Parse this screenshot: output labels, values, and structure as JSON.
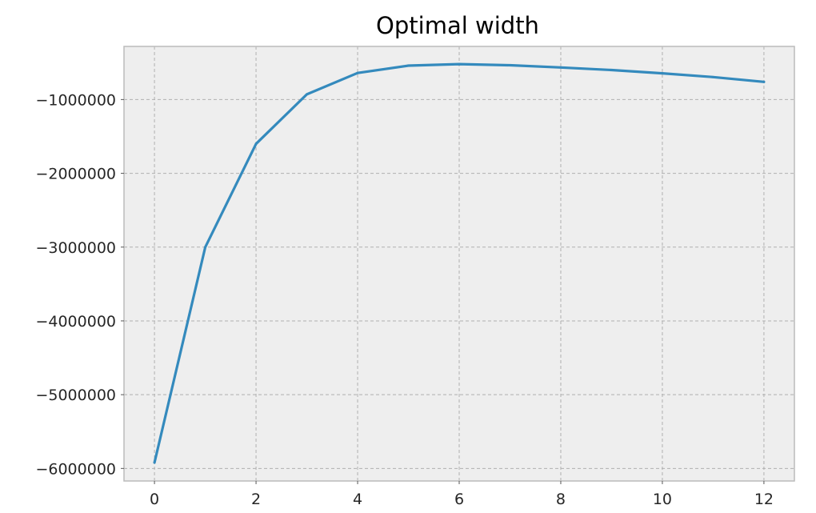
{
  "chart_data": {
    "type": "line",
    "title": "Optimal width",
    "xlabel": "",
    "ylabel": "",
    "x": [
      0,
      1,
      2,
      3,
      4,
      5,
      6,
      7,
      8,
      9,
      10,
      11,
      12
    ],
    "series": [
      {
        "name": "optimal width",
        "values": [
          -5920000,
          -3000000,
          -1600000,
          -930000,
          -640000,
          -540000,
          -520000,
          -535000,
          -565000,
          -600000,
          -645000,
          -695000,
          -760000
        ]
      }
    ],
    "xlim": [
      -0.6,
      12.6
    ],
    "ylim": [
      -6170000,
      -280000
    ],
    "xticks": [
      0,
      2,
      4,
      6,
      8,
      10,
      12
    ],
    "xtick_labels": [
      "0",
      "2",
      "4",
      "6",
      "8",
      "10",
      "12"
    ],
    "yticks": [
      -1000000,
      -2000000,
      -3000000,
      -4000000,
      -5000000,
      -6000000
    ],
    "ytick_labels": [
      "−1000000",
      "−2000000",
      "−3000000",
      "−4000000",
      "−5000000",
      "−6000000"
    ],
    "grid": true,
    "legend": "none",
    "colors": {
      "line": "#348abd",
      "plot_background": "#eeeeee",
      "plot_border": "#bcbcbc",
      "grid": "#b0b0b0"
    }
  }
}
